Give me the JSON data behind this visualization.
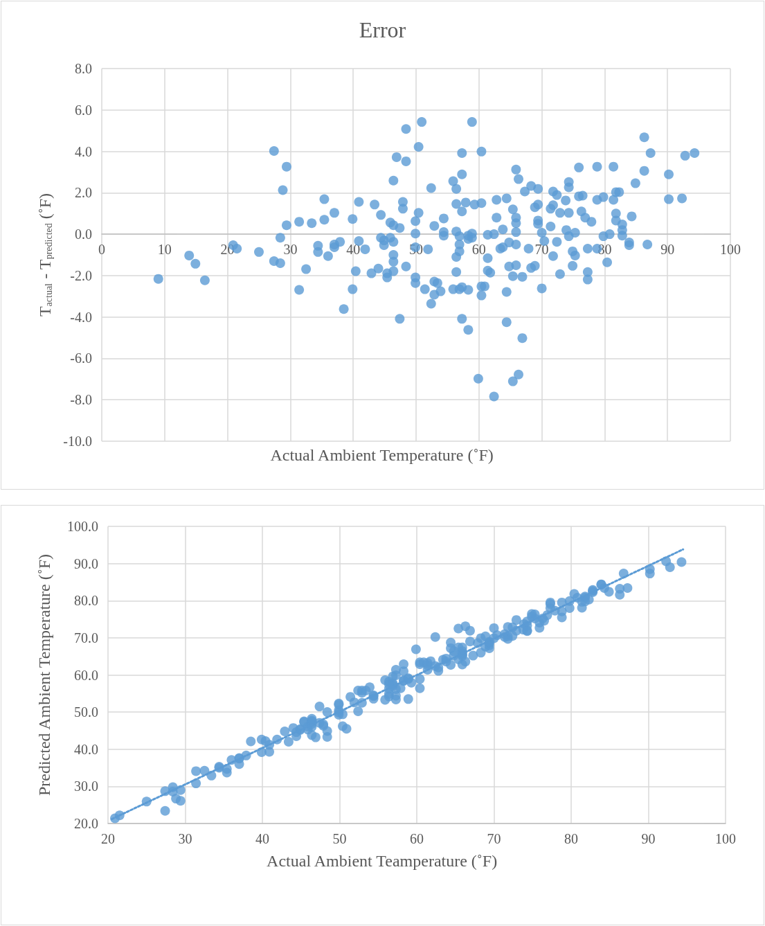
{
  "chart_data": [
    {
      "type": "scatter",
      "title": "Error",
      "xlabel": "Actual Ambient Temperature (˚F)",
      "ylabel": "T$_{actual}$ - T$_{predicted}$ (˚F)",
      "xlim": [
        0,
        100
      ],
      "xticks": [
        0,
        10,
        20,
        30,
        40,
        50,
        60,
        70,
        80,
        90,
        100
      ],
      "ylim": [
        -10,
        8
      ],
      "yticks": [
        {
          "value": -10,
          "label": "-10.0"
        },
        {
          "value": -8,
          "label": "-8.0"
        },
        {
          "value": -6,
          "label": "-6.0"
        },
        {
          "value": -4,
          "label": "-4.0"
        },
        {
          "value": -2,
          "label": "-2.0"
        },
        {
          "value": 0,
          "label": "0.0"
        },
        {
          "value": 2,
          "label": "2.0"
        },
        {
          "value": 4,
          "label": "4.0"
        },
        {
          "value": 6,
          "label": "6.0"
        },
        {
          "value": 8,
          "label": "8.0"
        }
      ],
      "grid": true,
      "marker": "circle",
      "series": [
        {
          "color": "#5b9bd5",
          "x": [
            9.0,
            13.9,
            14.9,
            16.4,
            20.9,
            21.5,
            25.0,
            27.4,
            27.4,
            28.4,
            28.4,
            28.8,
            29.4,
            29.4,
            31.4,
            31.4,
            32.5,
            33.4,
            34.4,
            34.4,
            35.4,
            35.4,
            36.0,
            37.0,
            37.0,
            37.0,
            37.9,
            38.5,
            39.9,
            39.9,
            40.4,
            40.9,
            40.9,
            41.9,
            42.9,
            43.4,
            44.0,
            44.4,
            44.4,
            44.9,
            44.9,
            45.4,
            45.4,
            45.9,
            45.9,
            46.4,
            46.4,
            46.4,
            46.4,
            46.4,
            46.4,
            46.9,
            47.4,
            47.4,
            47.9,
            47.9,
            48.4,
            48.4,
            48.4,
            49.9,
            49.9,
            49.9,
            49.9,
            49.9,
            50.4,
            50.4,
            50.9,
            51.4,
            51.9,
            52.4,
            52.9,
            52.9,
            52.9,
            52.4,
            53.4,
            53.9,
            54.4,
            54.4,
            54.4,
            55.9,
            55.9,
            56.4,
            56.4,
            56.4,
            56.4,
            56.4,
            56.9,
            56.9,
            56.9,
            56.9,
            57.3,
            57.3,
            57.3,
            57.3,
            57.3,
            57.9,
            58.3,
            58.3,
            58.3,
            58.3,
            58.9,
            58.9,
            58.9,
            59.3,
            59.9,
            60.4,
            60.4,
            60.4,
            60.4,
            60.9,
            61.4,
            61.4,
            61.4,
            61.8,
            62.4,
            62.4,
            62.8,
            62.8,
            63.4,
            63.8,
            63.8,
            64.4,
            64.4,
            64.4,
            64.8,
            64.8,
            65.4,
            65.4,
            65.4,
            65.9,
            65.9,
            65.9,
            65.9,
            65.9,
            65.9,
            66.3,
            66.3,
            66.9,
            66.9,
            67.3,
            67.9,
            68.3,
            68.3,
            68.9,
            68.9,
            69.4,
            69.4,
            69.4,
            69.4,
            70.0,
            70.0,
            70.4,
            71.4,
            71.4,
            71.8,
            71.8,
            71.8,
            72.4,
            72.4,
            72.9,
            72.9,
            73.8,
            73.9,
            74.3,
            74.3,
            74.3,
            74.3,
            74.9,
            74.9,
            75.3,
            75.3,
            75.9,
            75.9,
            76.3,
            76.5,
            76.9,
            77.3,
            77.3,
            77.3,
            77.9,
            78.8,
            78.8,
            78.8,
            79.8,
            79.8,
            80.4,
            80.8,
            81.4,
            81.4,
            81.8,
            81.8,
            81.8,
            82.3,
            82.8,
            82.8,
            82.8,
            83.9,
            83.9,
            84.3,
            84.9,
            86.3,
            86.3,
            86.8,
            87.3,
            90.2,
            90.2,
            92.3,
            92.8,
            94.3
          ],
          "values": [
            -2.16,
            -1.03,
            -1.43,
            -2.23,
            -0.53,
            -0.7,
            -0.86,
            4.02,
            -1.3,
            -0.17,
            -1.4,
            2.13,
            3.26,
            0.43,
            0.6,
            -2.69,
            -1.69,
            0.53,
            -0.56,
            -0.86,
            1.69,
            0.7,
            -1.06,
            1.03,
            -0.63,
            -0.5,
            -0.37,
            -3.62,
            0.73,
            -2.66,
            -1.79,
            1.56,
            -0.33,
            -0.73,
            -1.89,
            1.43,
            -1.66,
            0.93,
            -0.17,
            -0.3,
            -0.53,
            -1.89,
            -2.09,
            0.56,
            -0.17,
            2.59,
            0.43,
            -0.37,
            -1.0,
            -1.33,
            -1.79,
            3.72,
            0.3,
            -4.09,
            1.56,
            1.23,
            -1.56,
            3.52,
            5.08,
            0.63,
            0.03,
            -0.63,
            -2.09,
            -2.36,
            4.22,
            1.03,
            5.42,
            -2.66,
            -0.73,
            2.23,
            0.4,
            -2.29,
            -2.92,
            -3.36,
            -2.36,
            -2.76,
            0.76,
            0.1,
            -0.07,
            2.56,
            -2.66,
            2.19,
            1.46,
            0.13,
            -1.1,
            -1.83,
            -0.5,
            -0.1,
            -0.83,
            -2.66,
            2.89,
            3.92,
            1.1,
            -2.56,
            -4.09,
            1.53,
            -0.23,
            -0.07,
            -2.69,
            -4.62,
            0.03,
            5.42,
            -0.17,
            1.43,
            -6.98,
            1.5,
            3.99,
            -2.52,
            -2.96,
            -2.52,
            -0.03,
            -1.16,
            -1.76,
            -1.86,
            0.0,
            -7.84,
            1.66,
            0.8,
            -0.7,
            0.23,
            -0.63,
            1.73,
            -2.79,
            -4.25,
            -0.4,
            -1.56,
            1.2,
            -2.03,
            -7.11,
            3.12,
            0.8,
            0.53,
            0.1,
            -0.5,
            -1.5,
            2.66,
            -6.78,
            -2.06,
            -5.02,
            2.06,
            -0.7,
            2.33,
            -1.63,
            1.3,
            -1.53,
            2.19,
            1.43,
            0.66,
            0.5,
            0.07,
            -2.62,
            -0.33,
            0.37,
            1.23,
            1.4,
            -1.06,
            2.06,
            1.89,
            -0.37,
            1.03,
            -1.93,
            1.63,
            0.2,
            2.52,
            2.26,
            1.03,
            -0.1,
            -0.83,
            -1.53,
            0.07,
            -1.03,
            3.22,
            1.83,
            1.1,
            1.86,
            0.8,
            -0.7,
            -1.83,
            -2.19,
            0.6,
            3.26,
            1.66,
            -0.7,
            1.79,
            -0.1,
            -1.36,
            0.0,
            3.26,
            1.66,
            2.03,
            1.0,
            0.66,
            2.03,
            0.47,
            0.2,
            -0.07,
            -0.4,
            -0.53,
            0.86,
            2.46,
            4.68,
            3.06,
            -0.5,
            3.92,
            2.89,
            1.69,
            1.73,
            3.79,
            3.92
          ]
        }
      ]
    },
    {
      "type": "scatter",
      "xlabel": "Actual Ambient Teamperature (˚F)",
      "ylabel": "Predicted Ambient Temperature (˚F)",
      "xlim": [
        20,
        100
      ],
      "xticks": [
        20,
        30,
        40,
        50,
        60,
        70,
        80,
        90,
        100
      ],
      "ylim": [
        20,
        100
      ],
      "yticks": [
        {
          "value": 20,
          "label": "20.0"
        },
        {
          "value": 30,
          "label": "30.0"
        },
        {
          "value": 40,
          "label": "40.0"
        },
        {
          "value": 50,
          "label": "50.0"
        },
        {
          "value": 60,
          "label": "60.0"
        },
        {
          "value": 70,
          "label": "70.0"
        },
        {
          "value": 80,
          "label": "80.0"
        },
        {
          "value": 90,
          "label": "90.0"
        },
        {
          "value": 100,
          "label": "100.0"
        }
      ],
      "grid": true,
      "marker": "circle",
      "series": [
        {
          "color": "#5b9bd5",
          "x": [
            20.9,
            21.5,
            25.0,
            27.4,
            27.4,
            28.4,
            28.4,
            28.8,
            29.4,
            29.4,
            31.4,
            31.4,
            32.5,
            33.4,
            34.4,
            34.4,
            35.4,
            35.4,
            36.0,
            37.0,
            37.0,
            37.0,
            37.9,
            38.5,
            39.9,
            39.9,
            40.4,
            40.9,
            40.9,
            41.9,
            42.9,
            43.4,
            44.0,
            44.4,
            44.4,
            44.9,
            44.9,
            45.4,
            45.4,
            45.9,
            45.9,
            46.4,
            46.4,
            46.4,
            46.4,
            46.4,
            46.4,
            46.9,
            47.4,
            47.4,
            47.9,
            47.9,
            48.4,
            48.4,
            48.4,
            49.9,
            49.9,
            49.9,
            49.9,
            49.9,
            50.4,
            50.4,
            50.9,
            51.4,
            51.9,
            52.4,
            52.9,
            52.9,
            52.9,
            52.4,
            53.4,
            53.9,
            54.4,
            54.4,
            54.4,
            55.9,
            55.9,
            56.4,
            56.4,
            56.4,
            56.4,
            56.4,
            56.9,
            56.9,
            56.9,
            56.9,
            57.3,
            57.3,
            57.3,
            57.3,
            57.3,
            57.9,
            58.3,
            58.3,
            58.3,
            58.3,
            58.9,
            58.9,
            58.9,
            59.3,
            59.9,
            60.4,
            60.4,
            60.4,
            60.4,
            60.9,
            61.4,
            61.4,
            61.4,
            61.8,
            62.4,
            62.4,
            62.8,
            62.8,
            63.4,
            63.8,
            63.8,
            64.4,
            64.4,
            64.4,
            64.8,
            64.8,
            65.4,
            65.4,
            65.4,
            65.9,
            65.9,
            65.9,
            65.9,
            65.9,
            65.9,
            66.3,
            66.3,
            66.9,
            66.9,
            67.3,
            67.9,
            68.3,
            68.3,
            68.9,
            68.9,
            69.4,
            69.4,
            69.4,
            69.4,
            70.0,
            70.0,
            70.4,
            71.4,
            71.4,
            71.8,
            71.8,
            71.8,
            72.4,
            72.4,
            72.9,
            72.9,
            73.8,
            73.9,
            74.3,
            74.3,
            74.3,
            74.3,
            74.9,
            74.9,
            75.3,
            75.3,
            75.9,
            75.9,
            76.3,
            76.5,
            76.9,
            77.3,
            77.3,
            77.3,
            77.9,
            78.8,
            78.8,
            78.8,
            79.8,
            79.8,
            80.4,
            80.8,
            81.4,
            81.4,
            81.8,
            81.8,
            81.8,
            82.3,
            82.8,
            82.8,
            82.8,
            83.9,
            83.9,
            84.3,
            84.9,
            86.3,
            86.3,
            86.8,
            87.3,
            90.2,
            90.2,
            92.3,
            92.8,
            94.3
          ],
          "values": [
            21.4,
            22.2,
            25.9,
            23.4,
            28.7,
            28.6,
            29.8,
            26.7,
            26.1,
            29.0,
            30.8,
            34.1,
            34.2,
            32.9,
            35.0,
            35.3,
            33.7,
            34.7,
            37.1,
            36.0,
            37.6,
            37.5,
            38.3,
            42.1,
            39.2,
            42.6,
            42.2,
            39.3,
            41.2,
            42.6,
            44.8,
            42.0,
            45.7,
            43.5,
            44.6,
            45.2,
            45.4,
            47.3,
            47.5,
            45.3,
            46.1,
            43.8,
            46.0,
            46.8,
            47.4,
            47.7,
            48.2,
            43.2,
            47.1,
            51.5,
            46.3,
            46.7,
            50.0,
            44.9,
            43.3,
            49.3,
            49.9,
            50.5,
            52.0,
            52.3,
            46.2,
            49.4,
            45.5,
            54.1,
            52.6,
            50.2,
            52.5,
            55.2,
            55.8,
            55.8,
            55.8,
            56.7,
            53.6,
            54.3,
            54.5,
            53.3,
            58.6,
            54.2,
            54.9,
            56.3,
            57.5,
            58.2,
            57.4,
            57.0,
            57.7,
            59.6,
            54.4,
            53.4,
            56.2,
            59.9,
            61.4,
            56.4,
            58.5,
            58.4,
            61.0,
            62.9,
            58.9,
            53.5,
            59.1,
            57.9,
            66.9,
            58.9,
            56.4,
            62.9,
            63.4,
            63.4,
            61.4,
            62.6,
            63.2,
            63.7,
            62.4,
            70.2,
            61.1,
            62.0,
            64.1,
            63.6,
            64.4,
            62.7,
            67.2,
            68.7,
            65.2,
            66.4,
            64.2,
            67.4,
            72.5,
            62.8,
            65.1,
            65.4,
            65.8,
            66.4,
            67.4,
            63.6,
            73.1,
            69.0,
            71.9,
            65.2,
            68.6,
            66.0,
            69.9,
            67.6,
            70.4,
            67.2,
            68.0,
            68.7,
            68.9,
            69.9,
            72.6,
            70.7,
            71.0,
            70.2,
            70.4,
            72.9,
            69.7,
            70.5,
            72.8,
            71.9,
            74.8,
            72.2,
            73.7,
            71.8,
            72.0,
            73.3,
            74.4,
            75.7,
            76.4,
            75.2,
            76.3,
            72.7,
            74.1,
            75.2,
            74.6,
            76.1,
            78.0,
            79.1,
            79.5,
            77.3,
            75.5,
            77.1,
            79.5,
            78.0,
            79.9,
            81.8,
            80.8,
            78.1,
            79.7,
            79.8,
            80.8,
            81.1,
            80.3,
            82.3,
            82.6,
            82.9,
            84.3,
            84.4,
            83.4,
            82.4,
            81.6,
            83.2,
            87.3,
            83.4,
            87.3,
            88.5,
            90.6,
            89.0,
            90.4
          ]
        },
        {
          "type": "line",
          "color": "#5b9bd5",
          "line_style": "dotted",
          "marker": "none",
          "x": [
            20.5,
            94.5
          ],
          "values": [
            21.2,
            93.8
          ]
        }
      ]
    }
  ]
}
